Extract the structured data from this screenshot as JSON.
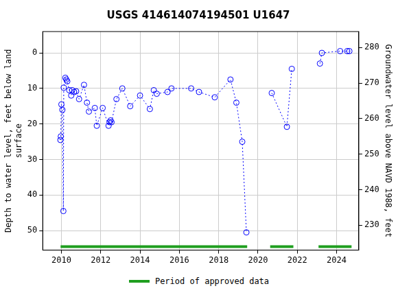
{
  "chart_data": {
    "type": "scatter",
    "title": "USGS 414614074194501 U1647",
    "y_label": [
      "Depth to water level, feet below land",
      "surface"
    ],
    "y2_label": "Groundwater level above NAVD 1988, feet",
    "x": [
      2009.95,
      2009.97,
      2010.0,
      2010.05,
      2010.1,
      2010.12,
      2010.2,
      2010.25,
      2010.3,
      2010.4,
      2010.5,
      2010.55,
      2010.65,
      2010.75,
      2010.9,
      2011.15,
      2011.3,
      2011.4,
      2011.7,
      2011.8,
      2012.1,
      2012.4,
      2012.45,
      2012.5,
      2012.55,
      2012.8,
      2013.1,
      2013.5,
      2014.0,
      2014.5,
      2014.7,
      2014.85,
      2015.4,
      2015.6,
      2016.6,
      2017.0,
      2017.8,
      2018.6,
      2018.9,
      2019.2,
      2019.41,
      null,
      2020.7,
      2021.47,
      2021.72,
      null,
      2023.15,
      2023.25,
      2024.18,
      2024.54,
      2024.65
    ],
    "values": [
      24.5,
      23.5,
      14.5,
      16,
      44.5,
      9.8,
      7,
      7.5,
      8,
      10.5,
      12,
      10.5,
      11,
      10.8,
      13,
      9,
      14,
      16.5,
      15.5,
      20.5,
      15.5,
      20.5,
      19.5,
      19,
      19.5,
      13,
      10,
      15,
      12,
      15.8,
      10.5,
      11.5,
      11,
      10,
      10,
      11,
      12.5,
      7.5,
      14,
      25,
      50.5,
      null,
      11.3,
      20.8,
      4.5,
      null,
      3,
      0,
      -0.5,
      -0.5,
      -0.5
    ],
    "color": "#0000ff",
    "marker": "circle",
    "line_style": "dotted",
    "xlim": [
      2009.05,
      2025.13
    ],
    "xticks": [
      2010,
      2012,
      2014,
      2016,
      2018,
      2020,
      2022,
      2024
    ],
    "ylim": [
      55.5,
      -6
    ],
    "yticks": [
      0,
      10,
      20,
      30,
      40,
      50
    ],
    "y2lim": [
      223,
      284.5
    ],
    "y2ticks": [
      230,
      240,
      250,
      260,
      270,
      280
    ],
    "grid": true,
    "legend": "bottom",
    "periods": {
      "name": "Period of approved data",
      "color": "#1f9e1f",
      "ranges": [
        [
          2009.96,
          2019.45
        ],
        [
          2020.62,
          2021.8
        ],
        [
          2023.08,
          2024.76
        ]
      ]
    }
  }
}
